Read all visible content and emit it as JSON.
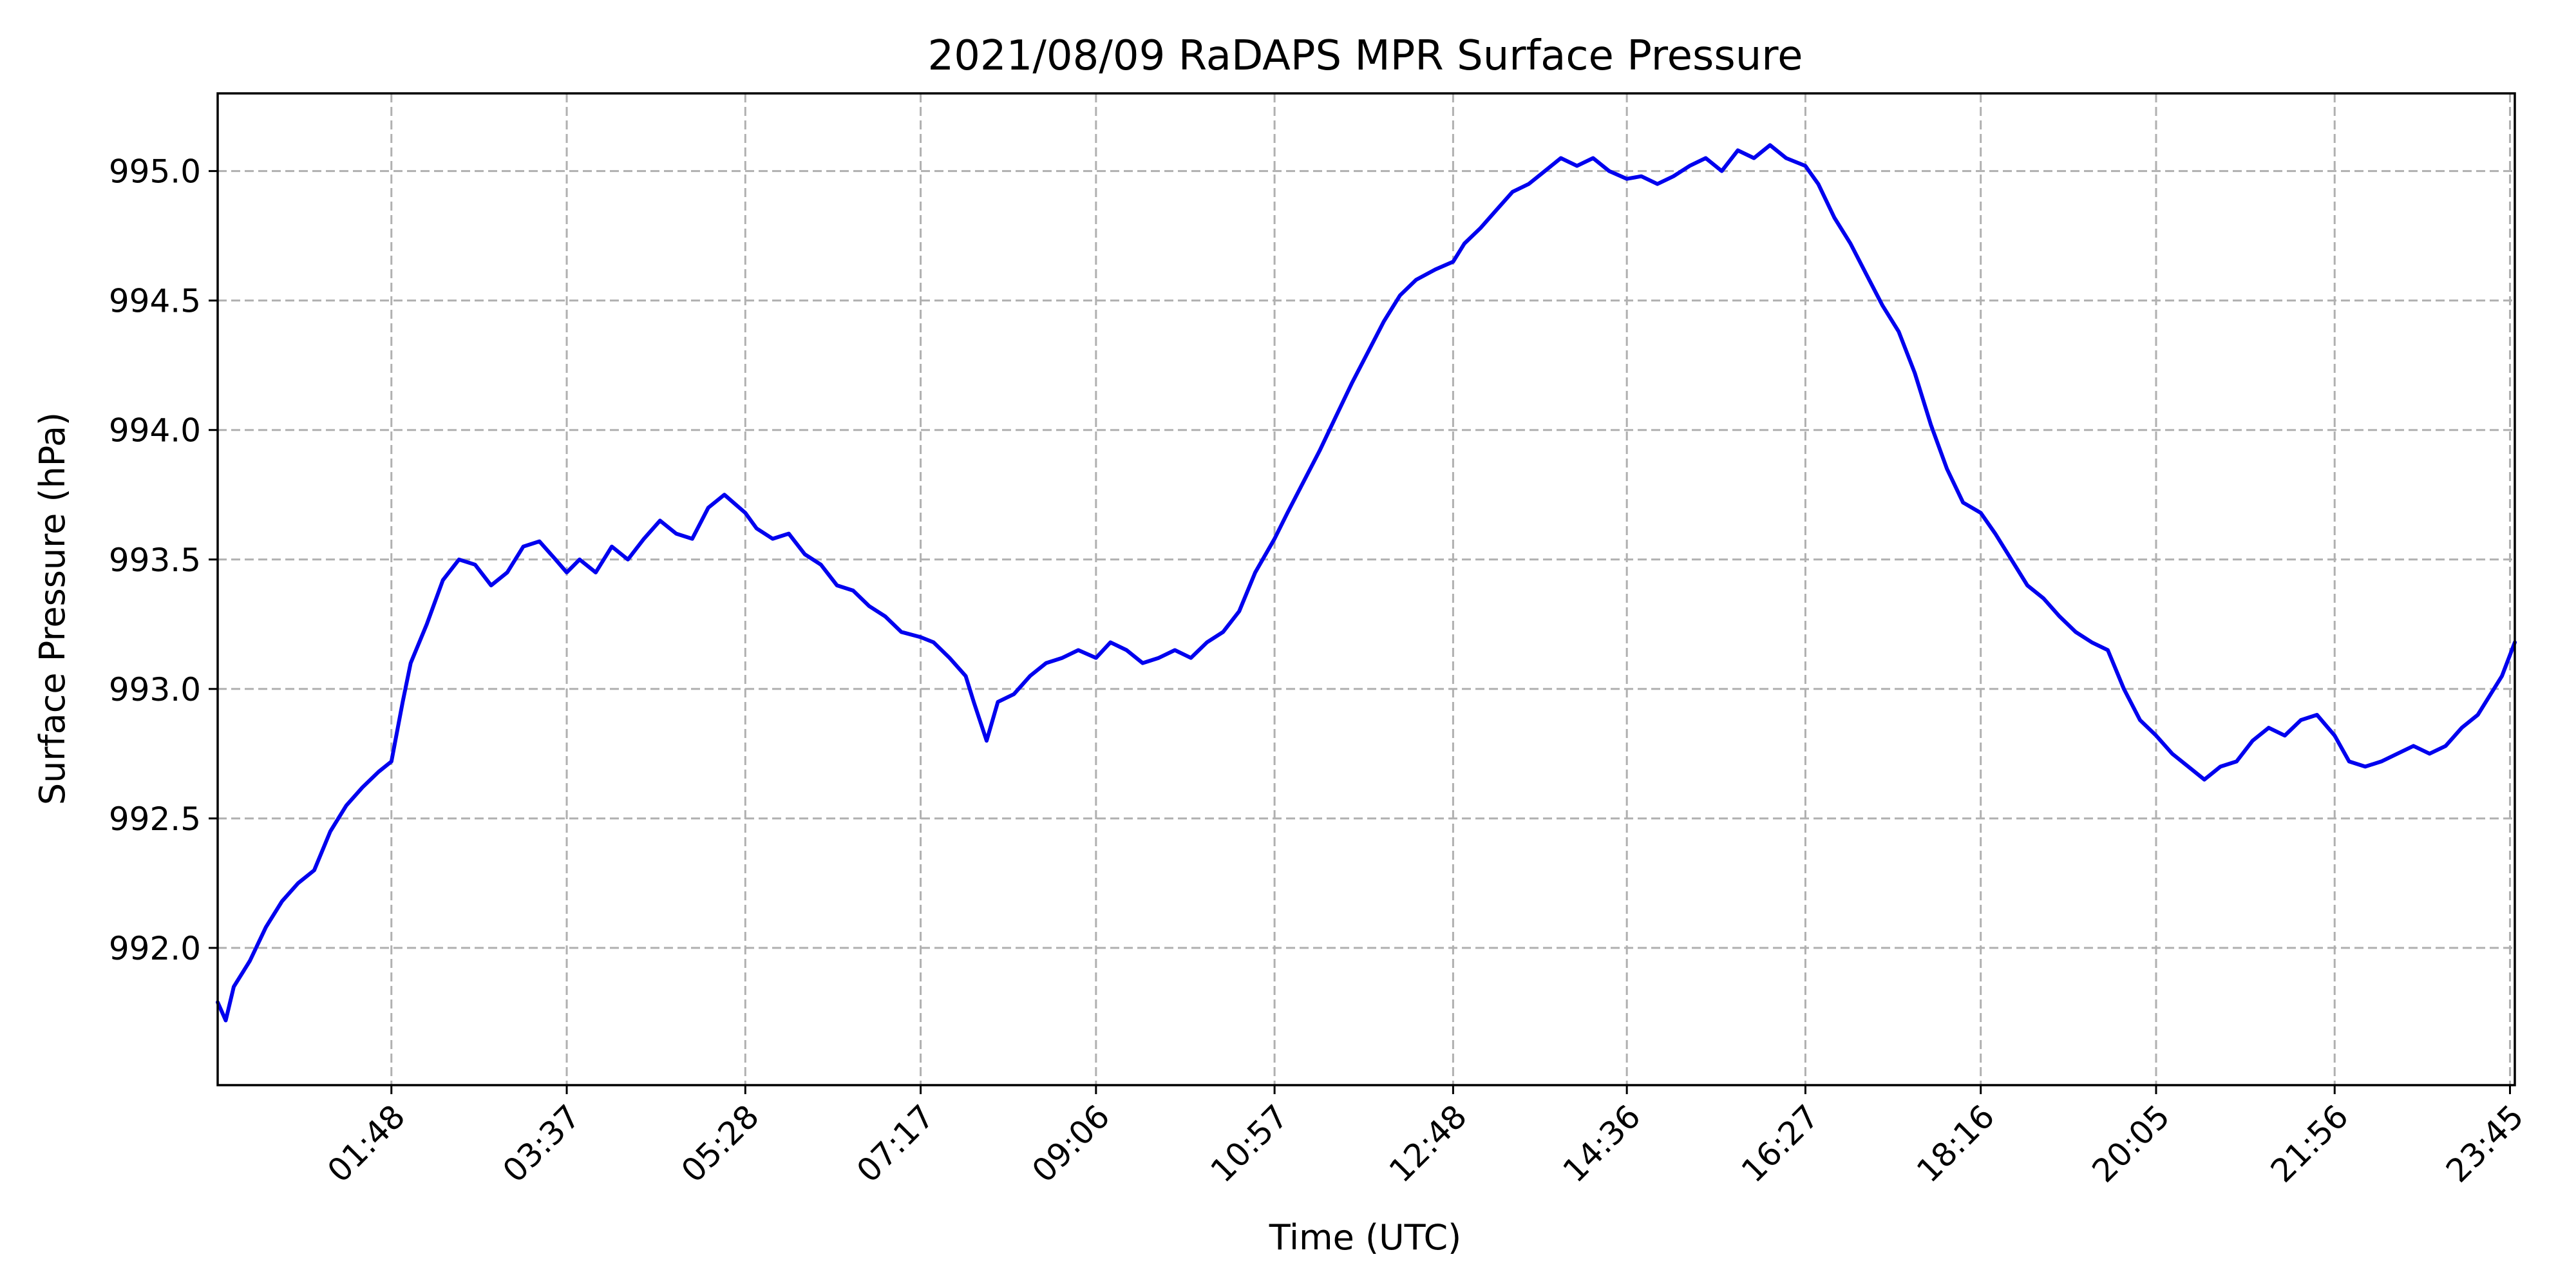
{
  "chart_data": {
    "type": "line",
    "title": "2021/08/09 RaDAPS MPR Surface Pressure",
    "xlabel": "Time (UTC)",
    "ylabel": "Surface Pressure (hPa)",
    "x_unit": "minutes UTC",
    "xlim": [
      0,
      1428
    ],
    "ylim": [
      991.47,
      995.3
    ],
    "grid": true,
    "legend": "none",
    "x_ticks": [
      {
        "value": 108,
        "label": "01:48"
      },
      {
        "value": 217,
        "label": "03:37"
      },
      {
        "value": 328,
        "label": "05:28"
      },
      {
        "value": 437,
        "label": "07:17"
      },
      {
        "value": 546,
        "label": "09:06"
      },
      {
        "value": 657,
        "label": "10:57"
      },
      {
        "value": 768,
        "label": "12:48"
      },
      {
        "value": 876,
        "label": "14:36"
      },
      {
        "value": 987,
        "label": "16:27"
      },
      {
        "value": 1096,
        "label": "18:16"
      },
      {
        "value": 1205,
        "label": "20:05"
      },
      {
        "value": 1316,
        "label": "21:56"
      },
      {
        "value": 1425,
        "label": "23:45"
      }
    ],
    "y_ticks": [
      {
        "value": 992.0,
        "label": "992.0"
      },
      {
        "value": 992.5,
        "label": "992.5"
      },
      {
        "value": 993.0,
        "label": "993.0"
      },
      {
        "value": 993.5,
        "label": "993.5"
      },
      {
        "value": 994.0,
        "label": "994.0"
      },
      {
        "value": 994.5,
        "label": "994.5"
      },
      {
        "value": 995.0,
        "label": "995.0"
      }
    ],
    "series": [
      {
        "color": "#0000ee",
        "x": [
          0,
          5,
          10,
          20,
          30,
          40,
          50,
          60,
          70,
          80,
          90,
          100,
          108,
          115,
          120,
          130,
          140,
          150,
          160,
          170,
          180,
          190,
          200,
          210,
          217,
          225,
          235,
          245,
          255,
          265,
          275,
          285,
          295,
          305,
          315,
          328,
          335,
          345,
          355,
          365,
          375,
          385,
          395,
          405,
          415,
          425,
          437,
          445,
          455,
          465,
          470,
          478,
          485,
          495,
          505,
          515,
          525,
          535,
          546,
          555,
          565,
          575,
          585,
          595,
          605,
          615,
          625,
          635,
          645,
          657,
          665,
          675,
          685,
          695,
          705,
          715,
          725,
          735,
          745,
          757,
          768,
          775,
          785,
          795,
          805,
          815,
          825,
          835,
          845,
          855,
          865,
          876,
          885,
          895,
          905,
          915,
          925,
          935,
          945,
          955,
          965,
          975,
          987,
          995,
          1005,
          1015,
          1025,
          1035,
          1045,
          1055,
          1065,
          1075,
          1085,
          1096,
          1105,
          1115,
          1125,
          1135,
          1145,
          1155,
          1165,
          1175,
          1185,
          1195,
          1205,
          1215,
          1225,
          1235,
          1245,
          1255,
          1265,
          1275,
          1285,
          1295,
          1305,
          1316,
          1325,
          1335,
          1345,
          1355,
          1365,
          1375,
          1385,
          1395,
          1405,
          1415,
          1420,
          1428
        ],
        "values": [
          991.79,
          991.72,
          991.85,
          991.95,
          992.08,
          992.18,
          992.25,
          992.3,
          992.45,
          992.55,
          992.62,
          992.68,
          992.72,
          992.95,
          993.1,
          993.25,
          993.42,
          993.5,
          993.48,
          993.4,
          993.45,
          993.55,
          993.57,
          993.5,
          993.45,
          993.5,
          993.45,
          993.55,
          993.5,
          993.58,
          993.65,
          993.6,
          993.58,
          993.7,
          993.75,
          993.68,
          993.62,
          993.58,
          993.6,
          993.52,
          993.48,
          993.4,
          993.38,
          993.32,
          993.28,
          993.22,
          993.2,
          993.18,
          993.12,
          993.05,
          992.95,
          992.8,
          992.95,
          992.98,
          993.05,
          993.1,
          993.12,
          993.15,
          993.12,
          993.18,
          993.15,
          993.1,
          993.12,
          993.15,
          993.12,
          993.18,
          993.22,
          993.3,
          993.45,
          993.58,
          993.68,
          993.8,
          993.92,
          994.05,
          994.18,
          994.3,
          994.42,
          994.52,
          994.58,
          994.62,
          994.65,
          994.72,
          994.78,
          994.85,
          994.92,
          994.95,
          995.0,
          995.05,
          995.02,
          995.05,
          995.0,
          994.97,
          994.98,
          994.95,
          994.98,
          995.02,
          995.05,
          995.0,
          995.08,
          995.05,
          995.1,
          995.05,
          995.02,
          994.95,
          994.82,
          994.72,
          994.6,
          994.48,
          994.38,
          994.22,
          994.02,
          993.85,
          993.72,
          993.68,
          993.6,
          993.5,
          993.4,
          993.35,
          993.28,
          993.22,
          993.18,
          993.15,
          993.0,
          992.88,
          992.82,
          992.75,
          992.7,
          992.65,
          992.7,
          992.72,
          992.8,
          992.85,
          992.82,
          992.88,
          992.9,
          992.82,
          992.72,
          992.7,
          992.72,
          992.75,
          992.78,
          992.75,
          992.78,
          992.85,
          992.9,
          993.0,
          993.05,
          993.18
        ]
      }
    ]
  }
}
